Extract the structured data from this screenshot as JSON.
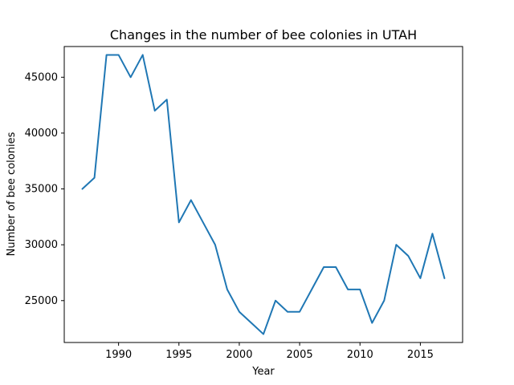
{
  "chart_data": {
    "type": "line",
    "title": "Changes in the number of bee colonies in UTAH",
    "xlabel": "Year",
    "ylabel": "Number of bee colonies",
    "x": [
      1987,
      1988,
      1989,
      1990,
      1991,
      1992,
      1993,
      1994,
      1995,
      1996,
      1997,
      1998,
      1999,
      2000,
      2001,
      2002,
      2003,
      2004,
      2005,
      2006,
      2007,
      2008,
      2009,
      2010,
      2011,
      2012,
      2013,
      2014,
      2015,
      2016,
      2017
    ],
    "series": [
      {
        "color": "#1f77b4",
        "values": [
          35000,
          36000,
          47000,
          47000,
          45000,
          47000,
          42000,
          43000,
          32000,
          34000,
          32000,
          30000,
          26000,
          24000,
          23000,
          22000,
          25000,
          24000,
          24000,
          26000,
          28000,
          28000,
          26000,
          26000,
          23000,
          25000,
          30000,
          29000,
          27000,
          31000,
          27000
        ]
      }
    ],
    "xlim": [
      1985.5,
      2018.5
    ],
    "ylim": [
      21250,
      47750
    ],
    "xticks": [
      1990,
      1995,
      2000,
      2005,
      2010,
      2015
    ],
    "xtick_labels": [
      "1990",
      "1995",
      "2000",
      "2005",
      "2010",
      "2015"
    ],
    "yticks": [
      25000,
      30000,
      35000,
      40000,
      45000
    ],
    "ytick_labels": [
      "25000",
      "30000",
      "35000",
      "40000",
      "45000"
    ],
    "grid": false,
    "legend": "none"
  }
}
